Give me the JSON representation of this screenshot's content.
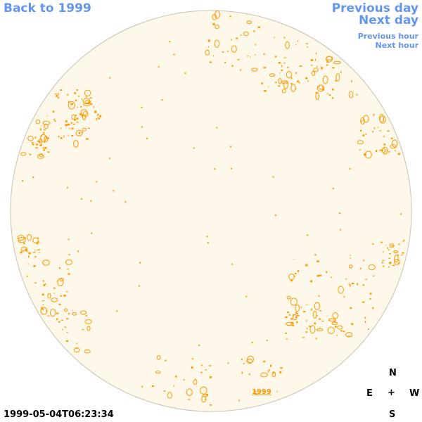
{
  "nav": {
    "back_label": "Back to 1999",
    "previous_day_label": "Previous day",
    "next_day_label": "Next day",
    "previous_hour_label": "Previous hour",
    "next_hour_label": "Next hour"
  },
  "image": {
    "timestamp": "1999-05-04T06:23:34",
    "year_mark": "1999"
  },
  "compass": {
    "north": "N",
    "east": "E",
    "center": "+",
    "west": "W",
    "south": "S"
  },
  "colors": {
    "link": "#6495ed",
    "disk_fill": "#fdf8ea",
    "disk_outline": "#c9c2b2",
    "contour": "#ff9900"
  }
}
